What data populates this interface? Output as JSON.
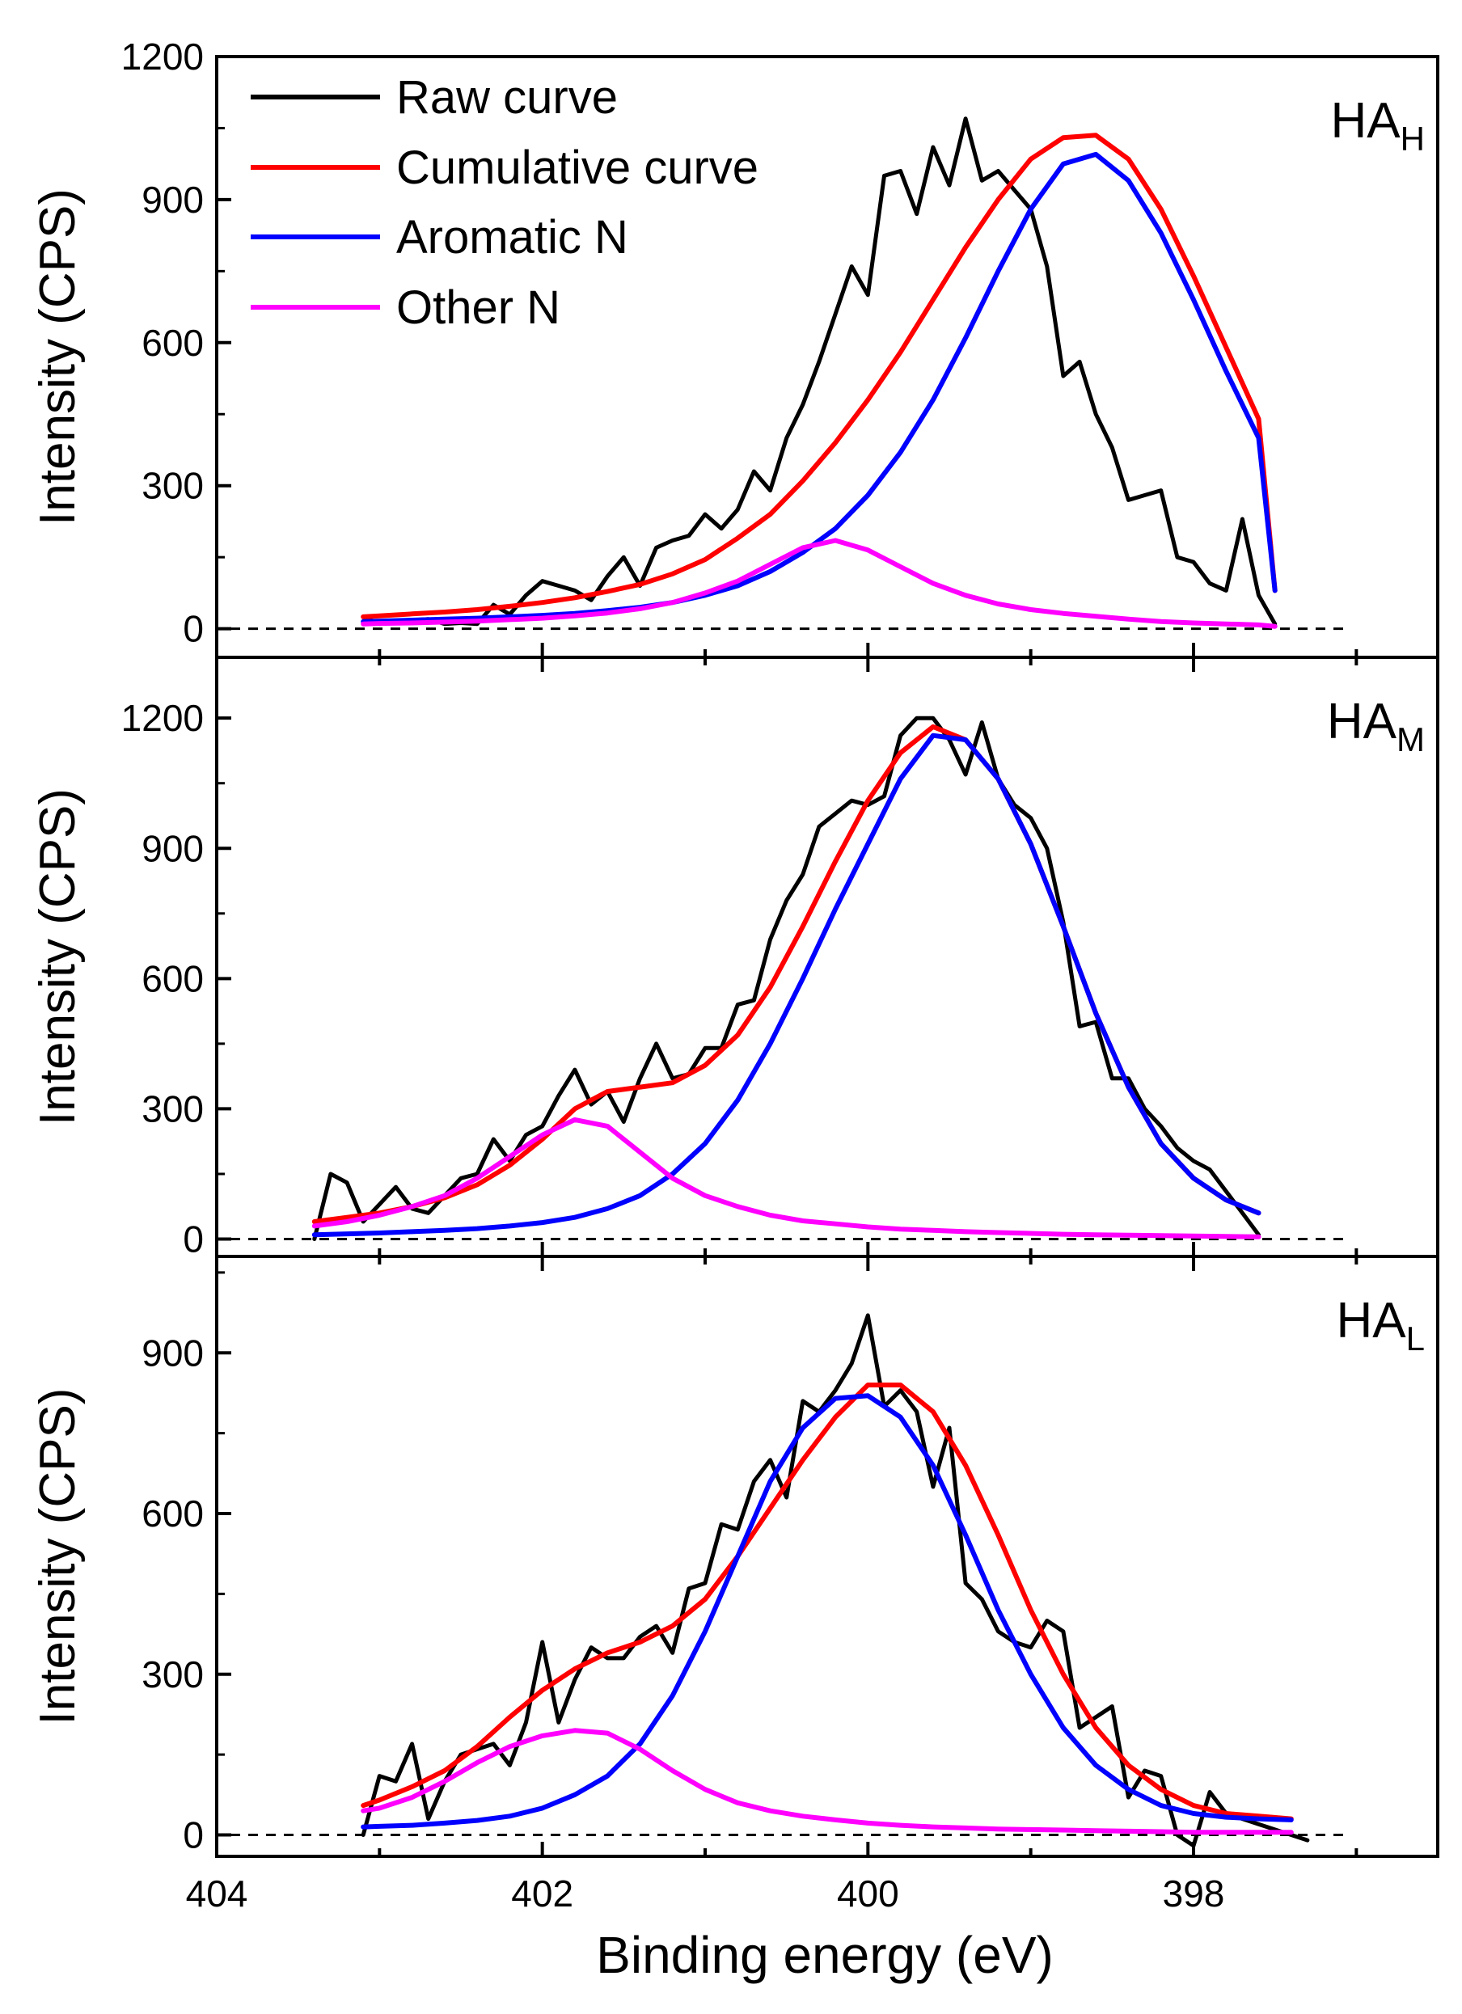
{
  "colors": {
    "raw": "#000000",
    "cumulative": "#ff0000",
    "aromatic": "#0000ff",
    "other": "#ff00ff",
    "frame": "#000000"
  },
  "figure": {
    "xlabel": "Binding energy (eV)",
    "ylabel": "Intensity (CPS)"
  },
  "legend": {
    "placement": "top-left of top panel",
    "items": [
      {
        "key": "raw",
        "label": "Raw curve"
      },
      {
        "key": "cumulative",
        "label": "Cumulative curve"
      },
      {
        "key": "aromatic",
        "label": "Aromatic N"
      },
      {
        "key": "other",
        "label": "Other N"
      }
    ]
  },
  "chart_data": [
    {
      "type": "line",
      "panel_label": "HA",
      "panel_subscript": "H",
      "title": "",
      "xlabel": "Binding energy (eV)",
      "ylabel": "Intensity (CPS)",
      "xlim": [
        404,
        396.5
      ],
      "ylim": [
        -60,
        1200
      ],
      "xticks": [
        404,
        402,
        400,
        398
      ],
      "yticks": [
        0,
        300,
        600,
        900,
        1200
      ],
      "baseline": 0,
      "series": [
        {
          "name": "Raw curve",
          "key": "raw",
          "x": [
            403.1,
            403.0,
            402.9,
            402.8,
            402.7,
            402.6,
            402.5,
            402.4,
            402.3,
            402.2,
            402.1,
            402.0,
            401.9,
            401.8,
            401.7,
            401.6,
            401.5,
            401.4,
            401.3,
            401.2,
            401.1,
            401.0,
            400.9,
            400.8,
            400.7,
            400.6,
            400.5,
            400.4,
            400.3,
            400.2,
            400.1,
            400.0,
            399.9,
            399.8,
            399.7,
            399.6,
            399.5,
            399.4,
            399.3,
            399.2,
            399.1,
            399.0,
            398.9,
            398.8,
            398.7,
            398.6,
            398.5,
            398.4,
            398.3,
            398.2,
            398.1,
            398.0,
            397.9,
            397.8,
            397.7,
            397.6,
            397.5
          ],
          "y": [
            25,
            10,
            15,
            18,
            20,
            10,
            12,
            10,
            50,
            30,
            70,
            100,
            90,
            80,
            60,
            110,
            150,
            90,
            170,
            185,
            195,
            240,
            210,
            250,
            330,
            290,
            400,
            470,
            560,
            660,
            760,
            700,
            950,
            960,
            870,
            1010,
            930,
            1070,
            940,
            960,
            920,
            880,
            760,
            530,
            560,
            450,
            380,
            270,
            280,
            290,
            150,
            140,
            95,
            80,
            230,
            70,
            10
          ]
        },
        {
          "name": "Cumulative curve",
          "key": "cumulative",
          "x": [
            403.1,
            403.0,
            402.8,
            402.6,
            402.4,
            402.2,
            402.0,
            401.8,
            401.6,
            401.4,
            401.2,
            401.0,
            400.8,
            400.6,
            400.4,
            400.2,
            400.0,
            399.8,
            399.6,
            399.4,
            399.2,
            399.0,
            398.8,
            398.6,
            398.4,
            398.2,
            398.0,
            397.8,
            397.6,
            397.5
          ],
          "y": [
            25,
            27,
            31,
            35,
            40,
            47,
            55,
            65,
            78,
            93,
            115,
            145,
            190,
            240,
            310,
            390,
            480,
            580,
            690,
            800,
            900,
            985,
            1030,
            1035,
            985,
            880,
            740,
            590,
            440,
            80
          ]
        },
        {
          "name": "Aromatic N",
          "key": "aromatic",
          "x": [
            403.1,
            403.0,
            402.8,
            402.6,
            402.4,
            402.2,
            402.0,
            401.8,
            401.6,
            401.4,
            401.2,
            401.0,
            400.8,
            400.6,
            400.4,
            400.2,
            400.0,
            399.8,
            399.6,
            399.4,
            399.2,
            399.0,
            398.8,
            398.6,
            398.4,
            398.2,
            398.0,
            397.8,
            397.6,
            397.5
          ],
          "y": [
            15,
            16,
            18,
            20,
            22,
            25,
            28,
            32,
            38,
            45,
            55,
            70,
            90,
            120,
            160,
            210,
            280,
            370,
            480,
            610,
            750,
            880,
            975,
            995,
            940,
            830,
            690,
            540,
            400,
            80
          ]
        },
        {
          "name": "Other N",
          "key": "other",
          "x": [
            403.1,
            403.0,
            402.8,
            402.6,
            402.4,
            402.2,
            402.0,
            401.8,
            401.6,
            401.4,
            401.2,
            401.0,
            400.8,
            400.6,
            400.4,
            400.2,
            400.0,
            399.8,
            399.6,
            399.4,
            399.2,
            399.0,
            398.8,
            398.6,
            398.4,
            398.2,
            398.0,
            397.8,
            397.6,
            397.5
          ],
          "y": [
            10,
            11,
            12,
            14,
            16,
            19,
            22,
            27,
            33,
            42,
            55,
            75,
            100,
            135,
            170,
            185,
            165,
            130,
            95,
            70,
            52,
            40,
            32,
            26,
            20,
            15,
            12,
            10,
            8,
            5
          ]
        }
      ]
    },
    {
      "type": "line",
      "panel_label": "HA",
      "panel_subscript": "M",
      "title": "",
      "xlabel": "Binding energy (eV)",
      "ylabel": "Intensity (CPS)",
      "xlim": [
        404,
        396.5
      ],
      "ylim": [
        -40,
        1340
      ],
      "xticks": [
        404,
        402,
        400,
        398
      ],
      "yticks": [
        0,
        300,
        600,
        900,
        1200
      ],
      "baseline": 0,
      "series": [
        {
          "name": "Raw curve",
          "key": "raw",
          "x": [
            403.4,
            403.3,
            403.2,
            403.1,
            403.0,
            402.9,
            402.8,
            402.7,
            402.6,
            402.5,
            402.4,
            402.3,
            402.2,
            402.1,
            402.0,
            401.9,
            401.8,
            401.7,
            401.6,
            401.5,
            401.4,
            401.3,
            401.2,
            401.1,
            401.0,
            400.9,
            400.8,
            400.7,
            400.6,
            400.5,
            400.4,
            400.3,
            400.2,
            400.1,
            400.0,
            399.9,
            399.8,
            399.7,
            399.6,
            399.5,
            399.4,
            399.3,
            399.2,
            399.1,
            399.0,
            398.9,
            398.8,
            398.7,
            398.6,
            398.5,
            398.4,
            398.3,
            398.2,
            398.1,
            398.0,
            397.9,
            397.8,
            397.7,
            397.6
          ],
          "y": [
            0,
            150,
            130,
            40,
            80,
            120,
            70,
            60,
            100,
            140,
            150,
            230,
            180,
            240,
            260,
            330,
            390,
            310,
            340,
            270,
            370,
            450,
            370,
            380,
            440,
            440,
            540,
            550,
            690,
            780,
            840,
            950,
            980,
            1010,
            1000,
            1020,
            1160,
            1200,
            1200,
            1150,
            1070,
            1190,
            1060,
            1000,
            970,
            900,
            730,
            490,
            500,
            370,
            370,
            300,
            260,
            210,
            180,
            160,
            110,
            60,
            10
          ]
        },
        {
          "name": "Cumulative curve",
          "key": "cumulative",
          "x": [
            403.4,
            403.2,
            403.0,
            402.8,
            402.6,
            402.4,
            402.2,
            402.0,
            401.8,
            401.6,
            401.4,
            401.2,
            401.0,
            400.8,
            400.6,
            400.4,
            400.2,
            400.0,
            399.8,
            399.6,
            399.4,
            399.2,
            399.0,
            398.8,
            398.6,
            398.4,
            398.2,
            398.0,
            397.8,
            397.6
          ],
          "y": [
            40,
            50,
            60,
            75,
            95,
            125,
            170,
            230,
            300,
            340,
            350,
            360,
            400,
            470,
            580,
            720,
            870,
            1010,
            1120,
            1180,
            1150,
            1060,
            910,
            720,
            520,
            350,
            220,
            140,
            90,
            60
          ]
        },
        {
          "name": "Aromatic N",
          "key": "aromatic",
          "x": [
            403.4,
            403.2,
            403.0,
            402.8,
            402.6,
            402.4,
            402.2,
            402.0,
            401.8,
            401.6,
            401.4,
            401.2,
            401.0,
            400.8,
            400.6,
            400.4,
            400.2,
            400.0,
            399.8,
            399.6,
            399.4,
            399.2,
            399.0,
            398.8,
            398.6,
            398.4,
            398.2,
            398.0,
            397.8,
            397.6
          ],
          "y": [
            10,
            12,
            14,
            17,
            20,
            24,
            30,
            38,
            50,
            70,
            100,
            150,
            220,
            320,
            450,
            600,
            760,
            910,
            1060,
            1160,
            1150,
            1060,
            910,
            720,
            520,
            350,
            220,
            140,
            90,
            60
          ]
        },
        {
          "name": "Other N",
          "key": "other",
          "x": [
            403.4,
            403.2,
            403.0,
            402.8,
            402.6,
            402.4,
            402.2,
            402.0,
            401.8,
            401.6,
            401.4,
            401.2,
            401.0,
            400.8,
            400.6,
            400.4,
            400.2,
            400.0,
            399.8,
            399.6,
            399.4,
            399.2,
            399.0,
            398.8,
            398.6,
            398.4,
            398.2,
            398.0,
            397.8,
            397.6
          ],
          "y": [
            30,
            40,
            55,
            75,
            100,
            140,
            190,
            240,
            275,
            260,
            200,
            140,
            100,
            75,
            55,
            42,
            35,
            28,
            23,
            20,
            17,
            15,
            13,
            11,
            10,
            9,
            8,
            7,
            6,
            5
          ]
        }
      ]
    },
    {
      "type": "line",
      "panel_label": "HA",
      "panel_subscript": "L",
      "title": "",
      "xlabel": "Binding energy (eV)",
      "ylabel": "Intensity (CPS)",
      "xlim": [
        404,
        396.5
      ],
      "ylim": [
        -40,
        1080
      ],
      "xticks": [
        404,
        402,
        400,
        398
      ],
      "yticks": [
        0,
        300,
        600,
        900
      ],
      "baseline": 0,
      "series": [
        {
          "name": "Raw curve",
          "key": "raw",
          "x": [
            403.1,
            403.0,
            402.9,
            402.8,
            402.7,
            402.6,
            402.5,
            402.4,
            402.3,
            402.2,
            402.1,
            402.0,
            401.9,
            401.8,
            401.7,
            401.6,
            401.5,
            401.4,
            401.3,
            401.2,
            401.1,
            401.0,
            400.9,
            400.8,
            400.7,
            400.6,
            400.5,
            400.4,
            400.3,
            400.2,
            400.1,
            400.0,
            399.9,
            399.8,
            399.7,
            399.6,
            399.5,
            399.4,
            399.3,
            399.2,
            399.1,
            399.0,
            398.9,
            398.8,
            398.7,
            398.6,
            398.5,
            398.4,
            398.3,
            398.2,
            398.1,
            398.0,
            397.9,
            397.8,
            397.7,
            397.6,
            397.5,
            397.4,
            397.3
          ],
          "y": [
            0,
            110,
            100,
            170,
            30,
            100,
            150,
            160,
            170,
            130,
            210,
            360,
            210,
            290,
            350,
            330,
            330,
            370,
            390,
            340,
            460,
            470,
            580,
            570,
            660,
            700,
            630,
            810,
            790,
            830,
            880,
            970,
            800,
            830,
            790,
            650,
            760,
            470,
            440,
            380,
            360,
            350,
            400,
            380,
            200,
            220,
            240,
            70,
            120,
            110,
            0,
            -20,
            80,
            40,
            30,
            20,
            10,
            0,
            -10
          ]
        },
        {
          "name": "Cumulative curve",
          "key": "cumulative",
          "x": [
            403.1,
            403.0,
            402.8,
            402.6,
            402.4,
            402.2,
            402.0,
            401.8,
            401.6,
            401.4,
            401.2,
            401.0,
            400.8,
            400.6,
            400.4,
            400.2,
            400.0,
            399.8,
            399.6,
            399.4,
            399.2,
            399.0,
            398.8,
            398.6,
            398.4,
            398.2,
            398.0,
            397.8,
            397.6,
            397.4
          ],
          "y": [
            55,
            65,
            90,
            120,
            165,
            220,
            270,
            310,
            340,
            360,
            390,
            440,
            520,
            610,
            700,
            780,
            840,
            840,
            790,
            690,
            560,
            420,
            300,
            200,
            130,
            85,
            55,
            40,
            35,
            30
          ]
        },
        {
          "name": "Aromatic N",
          "key": "aromatic",
          "x": [
            403.1,
            403.0,
            402.8,
            402.6,
            402.4,
            402.2,
            402.0,
            401.8,
            401.6,
            401.4,
            401.2,
            401.0,
            400.8,
            400.6,
            400.4,
            400.2,
            400.0,
            399.8,
            399.6,
            399.4,
            399.2,
            399.0,
            398.8,
            398.6,
            398.4,
            398.2,
            398.0,
            397.8,
            397.6,
            397.4
          ],
          "y": [
            15,
            16,
            18,
            22,
            27,
            35,
            50,
            75,
            110,
            170,
            260,
            380,
            520,
            660,
            760,
            815,
            820,
            780,
            690,
            560,
            420,
            300,
            200,
            130,
            85,
            55,
            40,
            33,
            30,
            28
          ]
        },
        {
          "name": "Other N",
          "key": "other",
          "x": [
            403.1,
            403.0,
            402.8,
            402.6,
            402.4,
            402.2,
            402.0,
            401.8,
            401.6,
            401.4,
            401.2,
            401.0,
            400.8,
            400.6,
            400.4,
            400.2,
            400.0,
            399.8,
            399.6,
            399.4,
            399.2,
            399.0,
            398.8,
            398.6,
            398.4,
            398.2,
            398.0,
            397.8,
            397.6,
            397.4
          ],
          "y": [
            45,
            50,
            70,
            100,
            135,
            165,
            185,
            195,
            190,
            160,
            120,
            85,
            60,
            45,
            35,
            28,
            22,
            18,
            15,
            13,
            11,
            10,
            9,
            8,
            7,
            6,
            5,
            5,
            5,
            5
          ]
        }
      ]
    }
  ]
}
